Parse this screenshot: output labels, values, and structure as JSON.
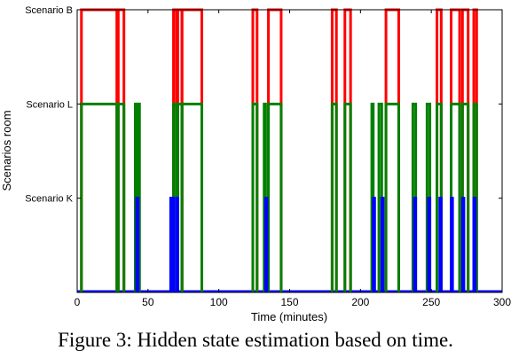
{
  "chart_data": {
    "type": "line",
    "title": "",
    "xlabel": "Time (minutes)",
    "ylabel": "Scenarios room",
    "xlim": [
      0,
      300
    ],
    "ylim": [
      0,
      3
    ],
    "x_ticks": [
      "0",
      "50",
      "100",
      "150",
      "200",
      "250",
      "300"
    ],
    "y_ticks": [
      "Scenario K",
      "Scenario L",
      "Scenario B"
    ],
    "grid": false,
    "legend": "none",
    "series_colors": {
      "red": "#ff0000",
      "green": "#008000",
      "blue": "#0000ff"
    },
    "series": [
      {
        "color": "red",
        "level": 3,
        "intervals": [
          [
            3,
            28
          ],
          [
            29,
            33
          ],
          [
            68,
            70
          ],
          [
            71,
            74
          ],
          [
            74,
            88
          ],
          [
            124,
            127
          ],
          [
            135,
            144
          ],
          [
            180,
            183
          ],
          [
            189,
            193
          ],
          [
            218,
            227
          ],
          [
            254,
            257
          ],
          [
            264,
            270
          ],
          [
            272,
            276
          ],
          [
            280,
            282
          ]
        ]
      },
      {
        "color": "green",
        "level": 2,
        "intervals": [
          [
            3,
            28
          ],
          [
            29,
            33
          ],
          [
            41,
            42
          ],
          [
            43,
            44
          ],
          [
            68,
            70
          ],
          [
            71,
            74
          ],
          [
            74,
            88
          ],
          [
            124,
            127
          ],
          [
            132,
            133
          ],
          [
            135,
            144
          ],
          [
            180,
            183
          ],
          [
            189,
            193
          ],
          [
            208,
            209
          ],
          [
            213,
            215
          ],
          [
            218,
            227
          ],
          [
            237,
            239
          ],
          [
            247,
            249
          ],
          [
            254,
            257
          ],
          [
            264,
            270
          ],
          [
            272,
            276
          ],
          [
            280,
            282
          ]
        ]
      },
      {
        "color": "blue",
        "level": 1,
        "intervals": [
          [
            42,
            43
          ],
          [
            66,
            67
          ],
          [
            67,
            68
          ],
          [
            70,
            71
          ],
          [
            133,
            134
          ],
          [
            209,
            210
          ],
          [
            215,
            216
          ],
          [
            238,
            239
          ],
          [
            248,
            249
          ],
          [
            256,
            257
          ],
          [
            264,
            265
          ],
          [
            272,
            273
          ],
          [
            280,
            281
          ]
        ]
      }
    ]
  },
  "caption": "Figure 3:  Hidden state estimation based on time."
}
